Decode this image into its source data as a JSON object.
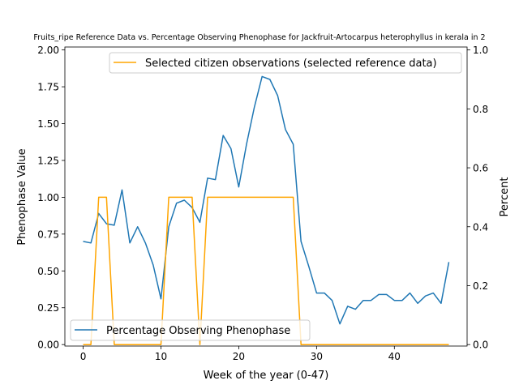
{
  "chart_data": {
    "type": "line",
    "title": "Fruits_ripe Reference Data vs. Percentage Observing Phenophase for Jackfruit-Artocarpus heterophyllus in kerala in 2",
    "xlabel": "Week of the year (0-47)",
    "ylabel_left": "Phenophase Value",
    "ylabel_right": "Percent",
    "xlim": [
      -2.35,
      49.35
    ],
    "ylim_left": [
      -0.01,
      2.02
    ],
    "ylim_right": [
      -0.005,
      1.01
    ],
    "x_ticks": [
      0,
      10,
      20,
      30,
      40
    ],
    "x_tick_labels": [
      "0",
      "10",
      "20",
      "30",
      "40"
    ],
    "y_left_ticks": [
      0.0,
      0.25,
      0.5,
      0.75,
      1.0,
      1.25,
      1.5,
      1.75,
      2.0
    ],
    "y_left_tick_labels": [
      "0.00",
      "0.25",
      "0.50",
      "0.75",
      "1.00",
      "1.25",
      "1.50",
      "1.75",
      "2.00"
    ],
    "y_right_ticks": [
      0.0,
      0.2,
      0.4,
      0.6,
      0.8,
      1.0
    ],
    "y_right_tick_labels": [
      "0.0",
      "0.2",
      "0.4",
      "0.6",
      "0.8",
      "1.0"
    ],
    "grid": false,
    "series": [
      {
        "name": "Percentage Observing Phenophase",
        "axis": "left",
        "color": "#1f77b4",
        "legend_position": "lower-left",
        "x": [
          0,
          1,
          2,
          3,
          4,
          5,
          6,
          7,
          8,
          9,
          10,
          11,
          12,
          13,
          14,
          15,
          16,
          17,
          18,
          19,
          20,
          21,
          22,
          23,
          24,
          25,
          26,
          27,
          28,
          29,
          30,
          31,
          32,
          33,
          34,
          35,
          36,
          37,
          38,
          39,
          40,
          41,
          42,
          43,
          44,
          45,
          46,
          47
        ],
        "values": [
          0.7,
          0.69,
          0.89,
          0.82,
          0.81,
          1.05,
          0.69,
          0.8,
          0.69,
          0.54,
          0.31,
          0.8,
          0.96,
          0.98,
          0.93,
          0.83,
          1.13,
          1.12,
          1.42,
          1.33,
          1.07,
          1.36,
          1.61,
          1.82,
          1.8,
          1.69,
          1.46,
          1.36,
          0.7,
          0.53,
          0.35,
          0.35,
          0.3,
          0.14,
          0.26,
          0.24,
          0.3,
          0.3,
          0.34,
          0.34,
          0.3,
          0.3,
          0.35,
          0.28,
          0.33,
          0.35,
          0.28,
          0.56
        ]
      },
      {
        "name": "Selected citizen observations (selected reference data)",
        "axis": "right",
        "color": "#ffa500",
        "legend_position": "top-right",
        "x": [
          0,
          1,
          2,
          3,
          4,
          5,
          6,
          7,
          8,
          9,
          10,
          11,
          12,
          13,
          14,
          15,
          16,
          17,
          18,
          19,
          20,
          21,
          22,
          23,
          24,
          25,
          26,
          27,
          28,
          29,
          30,
          31,
          32,
          33,
          34,
          35,
          36,
          37,
          38,
          39,
          40,
          41,
          42,
          43,
          44,
          45,
          46,
          47
        ],
        "values": [
          0,
          0,
          0.5,
          0.5,
          0,
          0,
          0,
          0,
          0,
          0,
          0,
          0.5,
          0.5,
          0.5,
          0.5,
          0,
          0.5,
          0.5,
          0.5,
          0.5,
          0.5,
          0.5,
          0.5,
          0.5,
          0.5,
          0.5,
          0.5,
          0.5,
          0,
          0,
          0,
          0,
          0,
          0,
          0,
          0,
          0,
          0,
          0,
          0,
          0,
          0,
          0,
          0,
          0,
          0,
          0,
          0
        ]
      }
    ]
  }
}
